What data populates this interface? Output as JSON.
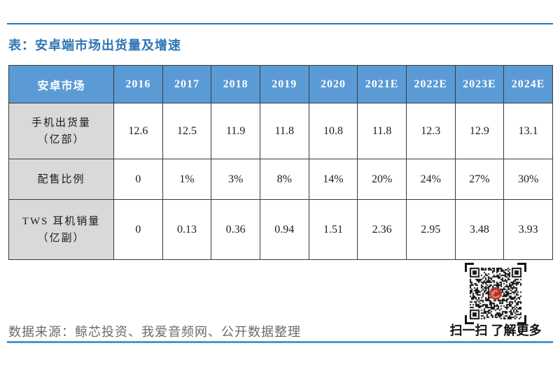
{
  "page": {
    "title": "表：安卓端市场出货量及增速",
    "source": "数据来源：鲸芯投资、我爱音频网、公开数据整理",
    "qr_caption": "扫一扫 了解更多"
  },
  "colors": {
    "accent_blue": "#2E75B6",
    "rule_blue": "#4D96CC",
    "header_blue": "#5B9BD5",
    "label_gray": "#D9D9D9",
    "border_dark": "#3A3A3A",
    "source_gray": "#6B6B6B",
    "seal_red": "#B83226"
  },
  "chart_data": {
    "type": "table",
    "title": "表：安卓端市场出货量及增速",
    "corner_header": "安卓市场",
    "categories": [
      "2016",
      "2017",
      "2018",
      "2019",
      "2020",
      "2021E",
      "2022E",
      "2023E",
      "2024E"
    ],
    "series": [
      {
        "name": "手机出货量（亿部）",
        "values": [
          12.6,
          12.5,
          11.9,
          11.8,
          10.8,
          11.8,
          12.3,
          12.9,
          13.1
        ]
      },
      {
        "name": "配售比例",
        "values": [
          "0",
          "1%",
          "3%",
          "8%",
          "14%",
          "20%",
          "24%",
          "27%",
          "30%"
        ]
      },
      {
        "name": "TWS 耳机销量（亿副）",
        "values": [
          0,
          0.13,
          0.36,
          0.94,
          1.51,
          2.36,
          2.95,
          3.48,
          3.93
        ]
      }
    ]
  },
  "table": {
    "corner_header": "安卓市场",
    "year_headers": [
      "2016",
      "2017",
      "2018",
      "2019",
      "2020",
      "2021E",
      "2022E",
      "2023E",
      "2024E"
    ],
    "rows": [
      {
        "label": "手机出货量\n（亿部）",
        "values": [
          "12.6",
          "12.5",
          "11.9",
          "11.8",
          "10.8",
          "11.8",
          "12.3",
          "12.9",
          "13.1"
        ]
      },
      {
        "label": "配售比例",
        "values": [
          "0",
          "1%",
          "3%",
          "8%",
          "14%",
          "20%",
          "24%",
          "27%",
          "30%"
        ]
      },
      {
        "label": "TWS 耳机销量\n（亿副）",
        "values": [
          "0",
          "0.13",
          "0.36",
          "0.94",
          "1.51",
          "2.36",
          "2.95",
          "3.48",
          "3.93"
        ]
      }
    ]
  }
}
